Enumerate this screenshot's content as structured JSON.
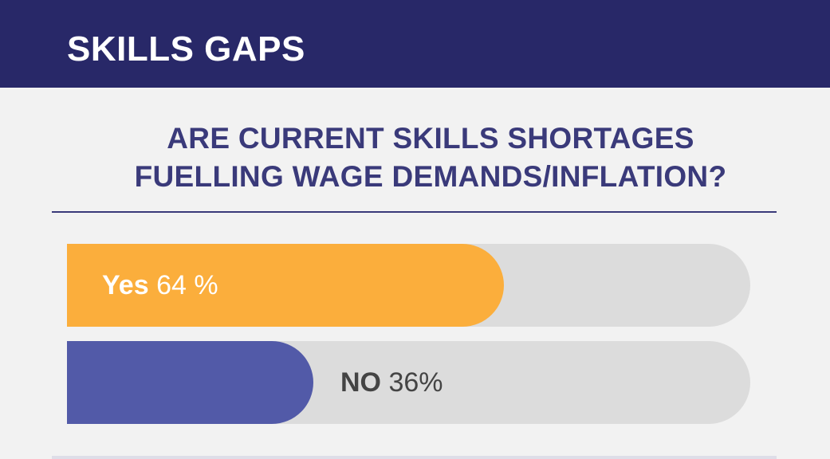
{
  "header": {
    "title": "SKILLS GAPS"
  },
  "question": {
    "lines": [
      "ARE CURRENT SKILLS SHORTAGES",
      "FUELLING WAGE DEMANDS/INFLATION?"
    ]
  },
  "colors": {
    "header_bg": "#282868",
    "title_text": "#3a3a7a",
    "yes_bar": "#fbae3c",
    "no_bar": "#525aa8",
    "track": "#dcdcdc"
  },
  "chart_data": {
    "type": "bar",
    "orientation": "horizontal",
    "categories": [
      "Yes",
      "NO"
    ],
    "values": [
      64,
      36
    ],
    "value_labels": [
      "64 %",
      "36%"
    ],
    "xlim": [
      0,
      100
    ],
    "unit": "%",
    "grid": false
  }
}
